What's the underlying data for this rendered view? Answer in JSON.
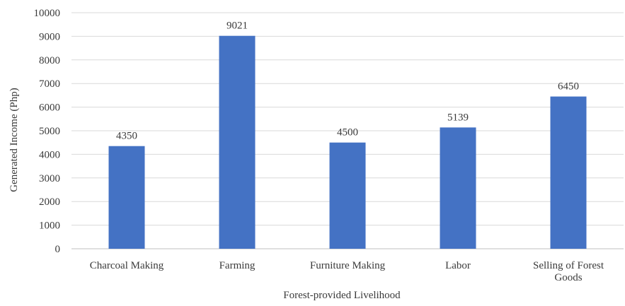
{
  "chart_data": {
    "type": "bar",
    "title": "",
    "xlabel": "Forest-provided Livelihood",
    "ylabel": "Generated Income (Php)",
    "categories": [
      "Charcoal Making",
      "Farming",
      "Furniture Making",
      "Labor",
      "Selling of Forest Goods"
    ],
    "category_lines": [
      [
        "Charcoal Making"
      ],
      [
        "Farming"
      ],
      [
        "Furniture Making"
      ],
      [
        "Labor"
      ],
      [
        "Selling of Forest",
        "Goods"
      ]
    ],
    "values": [
      4350,
      9021,
      4500,
      5139,
      6450
    ],
    "ylim": [
      0,
      10000
    ],
    "yticks": [
      0,
      1000,
      2000,
      3000,
      4000,
      5000,
      6000,
      7000,
      8000,
      9000,
      10000
    ],
    "grid": true,
    "legend": "none",
    "bar_color": "#4472C4",
    "grid_color": "#D9D9D9"
  }
}
